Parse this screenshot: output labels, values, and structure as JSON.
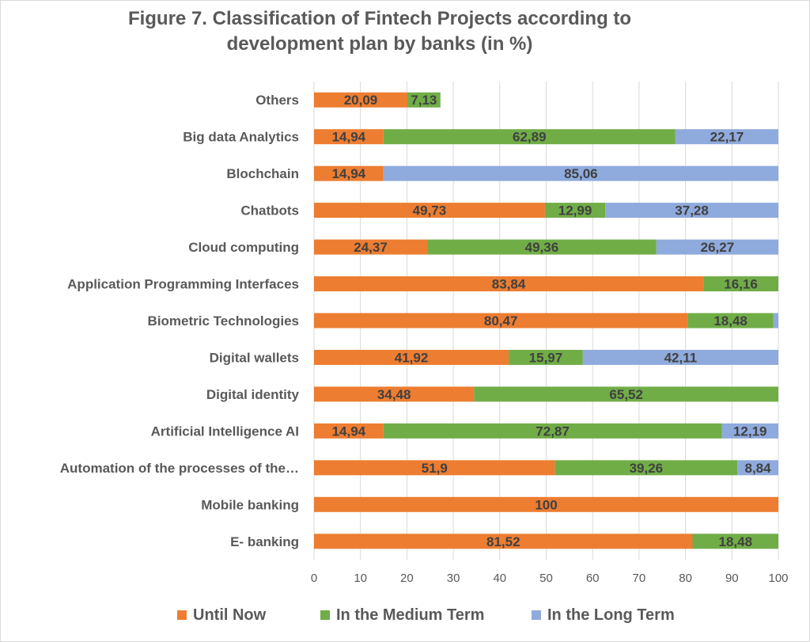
{
  "chart_data": {
    "type": "bar",
    "orientation": "horizontal",
    "stacked": true,
    "title_lines": [
      "Figure 7. Classification of Fintech Projects according to",
      "development plan by banks (in %)"
    ],
    "categories": [
      "Others",
      "Big data Analytics",
      "Blochchain",
      "Chatbots",
      "Cloud computing",
      "Application Programming Interfaces",
      "Biometric Technologies",
      "Digital wallets",
      "Digital identity",
      "Artificial Intelligence AI",
      "Automation of the processes of the…",
      "Mobile banking",
      "E- banking"
    ],
    "series": [
      {
        "name": "Until Now",
        "color": "#ED7D31",
        "values": [
          20.09,
          14.94,
          14.94,
          49.73,
          24.37,
          83.84,
          80.47,
          41.92,
          34.48,
          14.94,
          51.9,
          100,
          81.52
        ],
        "labels": [
          "20,09",
          "14,94",
          "14,94",
          "49,73",
          "24,37",
          "83,84",
          "80,47",
          "41,92",
          "34,48",
          "14,94",
          "51,9",
          "100",
          "81,52"
        ]
      },
      {
        "name": "In the Medium Term",
        "color": "#70AD47",
        "values": [
          7.13,
          62.89,
          0,
          12.99,
          49.36,
          16.16,
          18.48,
          15.97,
          65.52,
          72.87,
          39.26,
          0,
          18.48
        ],
        "labels": [
          "7,13",
          "62,89",
          "",
          "12,99",
          "49,36",
          "16,16",
          "18,48",
          "15,97",
          "65,52",
          "72,87",
          "39,26",
          "",
          "18,48"
        ]
      },
      {
        "name": "In the Long Term",
        "color": "#8FAADC",
        "values": [
          0,
          22.17,
          85.06,
          37.28,
          26.27,
          0,
          1.05,
          42.11,
          0,
          12.19,
          8.84,
          0,
          0
        ],
        "labels": [
          "",
          "22,17",
          "85,06",
          "37,28",
          "26,27",
          "",
          "",
          "42,11",
          "",
          "12,19",
          "8,84",
          "",
          ""
        ]
      }
    ],
    "xlim": [
      0,
      100
    ],
    "xticks": [
      "0",
      "10",
      "20",
      "30",
      "40",
      "50",
      "60",
      "70",
      "80",
      "90",
      "100"
    ],
    "grid": "vertical",
    "legend_position": "bottom"
  }
}
